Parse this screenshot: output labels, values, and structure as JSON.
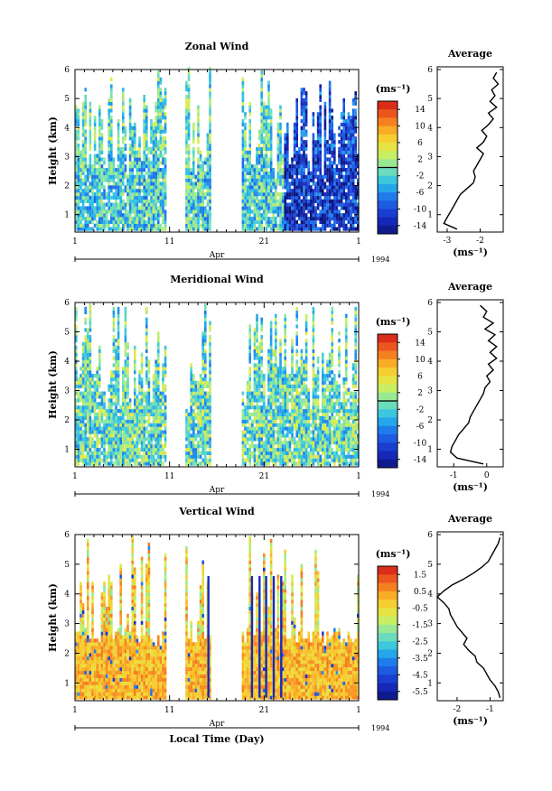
{
  "chart_data": [
    {
      "type": "heatmap",
      "title": "Zonal Wind",
      "ylabel": "Height (km)",
      "yticks": [
        "1",
        "2",
        "3",
        "4",
        "5",
        "6"
      ],
      "ylim": [
        0.4,
        6
      ],
      "xticks": [
        "1",
        "11",
        "21",
        "1"
      ],
      "xlim_days": [
        1,
        31
      ],
      "month_label": "Apr",
      "year_label": "1994",
      "colorbar": {
        "unit": "(ms⁻¹)",
        "ticks": [
          "14",
          "10",
          "6",
          "2",
          "-2",
          "-6",
          "-10",
          "-14"
        ],
        "range": [
          -16,
          16
        ],
        "zero_line": true
      },
      "data_gaps_days": [
        [
          10.6,
          12.6
        ],
        [
          15.2,
          18.6
        ]
      ],
      "average_profile": {
        "title": "Average",
        "xlabel": "(ms⁻¹)",
        "xticks": [
          "-3",
          "-2"
        ],
        "xlim": [
          -3.3,
          -1.3
        ],
        "ylim": [
          0.4,
          6
        ],
        "height_km": [
          0.5,
          0.7,
          0.9,
          1.1,
          1.3,
          1.5,
          1.7,
          1.9,
          2.1,
          2.3,
          2.5,
          2.7,
          2.9,
          3.1,
          3.3,
          3.5,
          3.7,
          3.9,
          4.1,
          4.3,
          4.5,
          4.7,
          4.9,
          5.1,
          5.3,
          5.5,
          5.7,
          5.9
        ],
        "values": [
          -2.7,
          -3.1,
          -3.0,
          -2.9,
          -2.8,
          -2.7,
          -2.6,
          -2.4,
          -2.2,
          -2.15,
          -2.2,
          -2.1,
          -2.0,
          -1.9,
          -2.1,
          -1.9,
          -1.8,
          -1.95,
          -1.75,
          -1.6,
          -1.75,
          -1.5,
          -1.7,
          -1.55,
          -1.65,
          -1.45,
          -1.6,
          -1.5
        ]
      }
    },
    {
      "type": "heatmap",
      "title": "Meridional Wind",
      "ylabel": "Height (km)",
      "yticks": [
        "1",
        "2",
        "3",
        "4",
        "5",
        "6"
      ],
      "ylim": [
        0.4,
        6
      ],
      "xticks": [
        "1",
        "11",
        "21",
        "1"
      ],
      "xlim_days": [
        1,
        31
      ],
      "month_label": "Apr",
      "year_label": "1994",
      "colorbar": {
        "unit": "(ms⁻¹)",
        "ticks": [
          "14",
          "10",
          "6",
          "2",
          "-2",
          "-6",
          "-10",
          "-14"
        ],
        "range": [
          -16,
          16
        ],
        "zero_line": true
      },
      "data_gaps_days": [
        [
          10.6,
          12.6
        ],
        [
          15.2,
          18.6
        ]
      ],
      "average_profile": {
        "title": "Average",
        "xlabel": "(ms⁻¹)",
        "xticks": [
          "-1",
          "0"
        ],
        "xlim": [
          -1.5,
          0.5
        ],
        "ylim": [
          0.4,
          6
        ],
        "height_km": [
          0.5,
          0.7,
          0.9,
          1.1,
          1.3,
          1.5,
          1.7,
          1.9,
          2.1,
          2.3,
          2.5,
          2.7,
          2.9,
          3.1,
          3.3,
          3.5,
          3.7,
          3.9,
          4.1,
          4.3,
          4.5,
          4.7,
          4.9,
          5.1,
          5.3,
          5.5,
          5.7,
          5.9
        ],
        "values": [
          -0.1,
          -0.9,
          -1.1,
          -1.05,
          -0.95,
          -0.85,
          -0.7,
          -0.55,
          -0.5,
          -0.4,
          -0.3,
          -0.2,
          -0.1,
          -0.05,
          0.1,
          0.0,
          0.2,
          0.05,
          0.3,
          0.1,
          0.3,
          0.05,
          0.25,
          -0.05,
          0.2,
          -0.1,
          0.0,
          -0.2
        ]
      }
    },
    {
      "type": "heatmap",
      "title": "Vertical Wind",
      "ylabel": "Height (km)",
      "xlabel": "Local Time (Day)",
      "yticks": [
        "1",
        "2",
        "3",
        "4",
        "5",
        "6"
      ],
      "ylim": [
        0.4,
        6
      ],
      "xticks": [
        "1",
        "11",
        "21",
        "1"
      ],
      "xlim_days": [
        1,
        31
      ],
      "month_label": "Apr",
      "year_label": "1994",
      "colorbar": {
        "unit": "(ms⁻¹)",
        "ticks": [
          "1.5",
          "0.5",
          "-0.5",
          "-1.5",
          "-2.5",
          "-3.5",
          "-4.5",
          "-5.5"
        ],
        "range": [
          -6,
          2
        ],
        "zero_line": false
      },
      "data_gaps_days": [
        [
          10.6,
          12.6
        ],
        [
          15.2,
          18.6
        ]
      ],
      "average_profile": {
        "title": "Average",
        "xlabel": "(ms⁻¹)",
        "xticks": [
          "-2",
          "-1"
        ],
        "xlim": [
          -2.6,
          -0.6
        ],
        "ylim": [
          0.4,
          6
        ],
        "height_km": [
          0.5,
          0.7,
          0.9,
          1.1,
          1.3,
          1.5,
          1.7,
          1.9,
          2.1,
          2.3,
          2.5,
          2.7,
          2.9,
          3.1,
          3.3,
          3.5,
          3.7,
          3.9,
          4.1,
          4.3,
          4.5,
          4.7,
          4.9,
          5.1,
          5.3,
          5.5,
          5.7,
          5.9
        ],
        "values": [
          -0.7,
          -0.75,
          -0.85,
          -1.0,
          -1.1,
          -1.2,
          -1.4,
          -1.45,
          -1.65,
          -1.8,
          -1.7,
          -1.85,
          -2.0,
          -2.1,
          -2.2,
          -2.25,
          -2.4,
          -2.6,
          -2.4,
          -2.15,
          -1.8,
          -1.5,
          -1.25,
          -1.05,
          -0.95,
          -0.85,
          -0.75,
          -0.7
        ]
      }
    }
  ]
}
